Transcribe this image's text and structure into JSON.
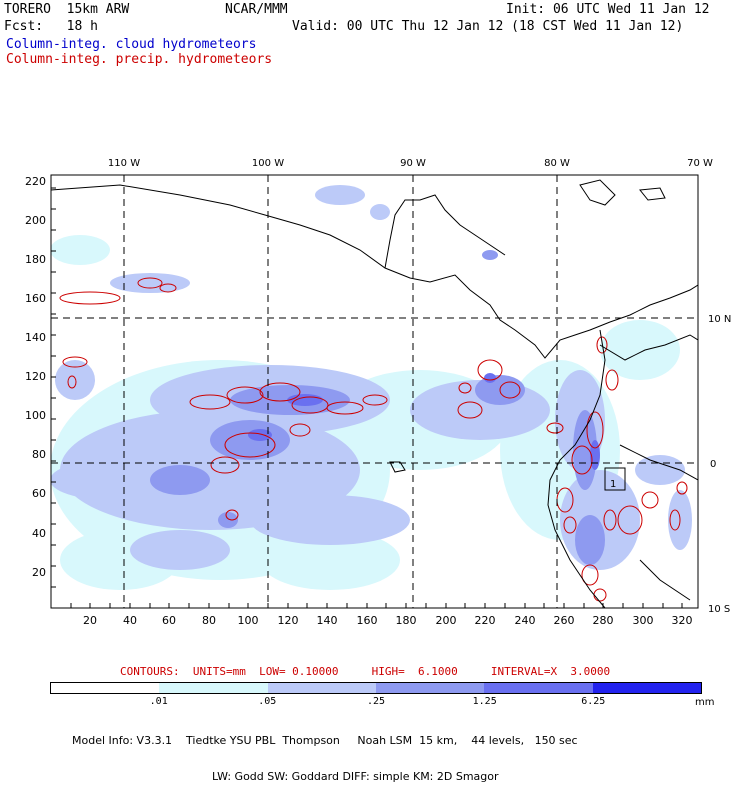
{
  "header": {
    "model": "TORERO  15km ARW",
    "org": "NCAR/MMM",
    "init": "Init: 06 UTC Wed 11 Jan 12",
    "fcst": "Fcst:   18 h",
    "valid": "Valid: 00 UTC Thu 12 Jan 12 (18 CST Wed 11 Jan 12)"
  },
  "legend": {
    "cloud": "Column-integ. cloud hydrometeors",
    "precip": "Column-integ. precip. hydrometeors",
    "cloud_color": "#0000cc",
    "precip_color": "#cc0000"
  },
  "map": {
    "top_lon_labels": [
      "110 W",
      "100 W",
      "90 W",
      "80 W",
      "70 W"
    ],
    "right_lat_labels": [
      "10 N",
      "0",
      "10 S"
    ],
    "y_ticks": [
      "20",
      "40",
      "60",
      "80",
      "100",
      "120",
      "140",
      "160",
      "180",
      "200",
      "220"
    ],
    "x_ticks": [
      "20",
      "40",
      "60",
      "80",
      "100",
      "120",
      "140",
      "160",
      "180",
      "200",
      "220",
      "240",
      "260",
      "280",
      "300",
      "320"
    ],
    "box_label": "1"
  },
  "contour_info": "CONTOURS:  UNITS=mm  LOW= 0.10000     HIGH=  6.1000     INTERVAL=X  3.0000",
  "colorbar": {
    "colors": [
      "#ffffff",
      "#d8f8fc",
      "#bccaf8",
      "#8e9af0",
      "#6a70f0",
      "#2222ee"
    ],
    "labels": [
      ".01",
      ".05",
      ".25",
      "1.25",
      "6.25"
    ],
    "unit": "mm"
  },
  "model_info": {
    "line1": "Model Info: V3.3.1    Tiedtke YSU PBL  Thompson     Noah LSM  15 km,    44 levels,   150 sec",
    "line2": "LW: Godd SW: Goddard DIFF: simple KM: 2D Smagor"
  }
}
